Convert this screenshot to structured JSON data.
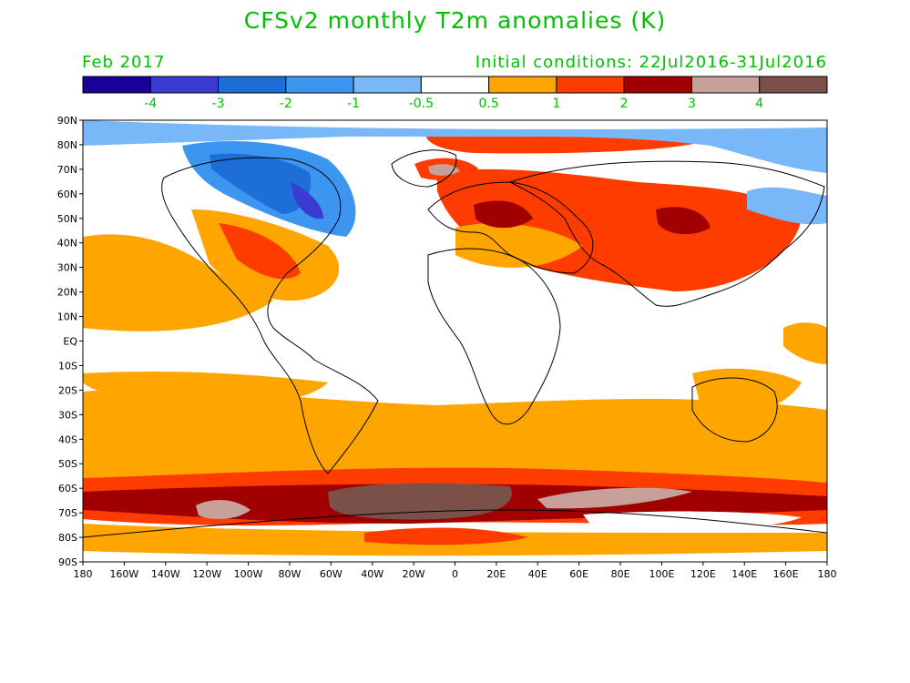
{
  "title": "CFSv2 monthly T2m anomalies (K)",
  "valid_month": "Feb 2017",
  "initial_conditions": "Initial conditions: 22Jul2016-31Jul2016",
  "text_color": "#00c000",
  "colorbar": {
    "colors": [
      "#1a0099",
      "#3b3bd4",
      "#1e6ed8",
      "#3c96f0",
      "#78b8f8",
      "#ffffff",
      "#ffa500",
      "#ff3c00",
      "#a00000",
      "#c8a09a",
      "#7a5048"
    ],
    "labels": [
      "-4",
      "-3",
      "-2",
      "-1",
      "-0.5",
      "0.5",
      "1",
      "2",
      "3",
      "4"
    ]
  },
  "axes": {
    "lat_labels": [
      "90N",
      "80N",
      "70N",
      "60N",
      "50N",
      "40N",
      "30N",
      "20N",
      "10N",
      "EQ",
      "10S",
      "20S",
      "30S",
      "40S",
      "50S",
      "60S",
      "70S",
      "80S",
      "90S"
    ],
    "lon_labels": [
      "180",
      "160W",
      "140W",
      "120W",
      "100W",
      "80W",
      "60W",
      "40W",
      "20W",
      "0",
      "20E",
      "40E",
      "60E",
      "80E",
      "100E",
      "120E",
      "140E",
      "160E",
      "180"
    ]
  }
}
